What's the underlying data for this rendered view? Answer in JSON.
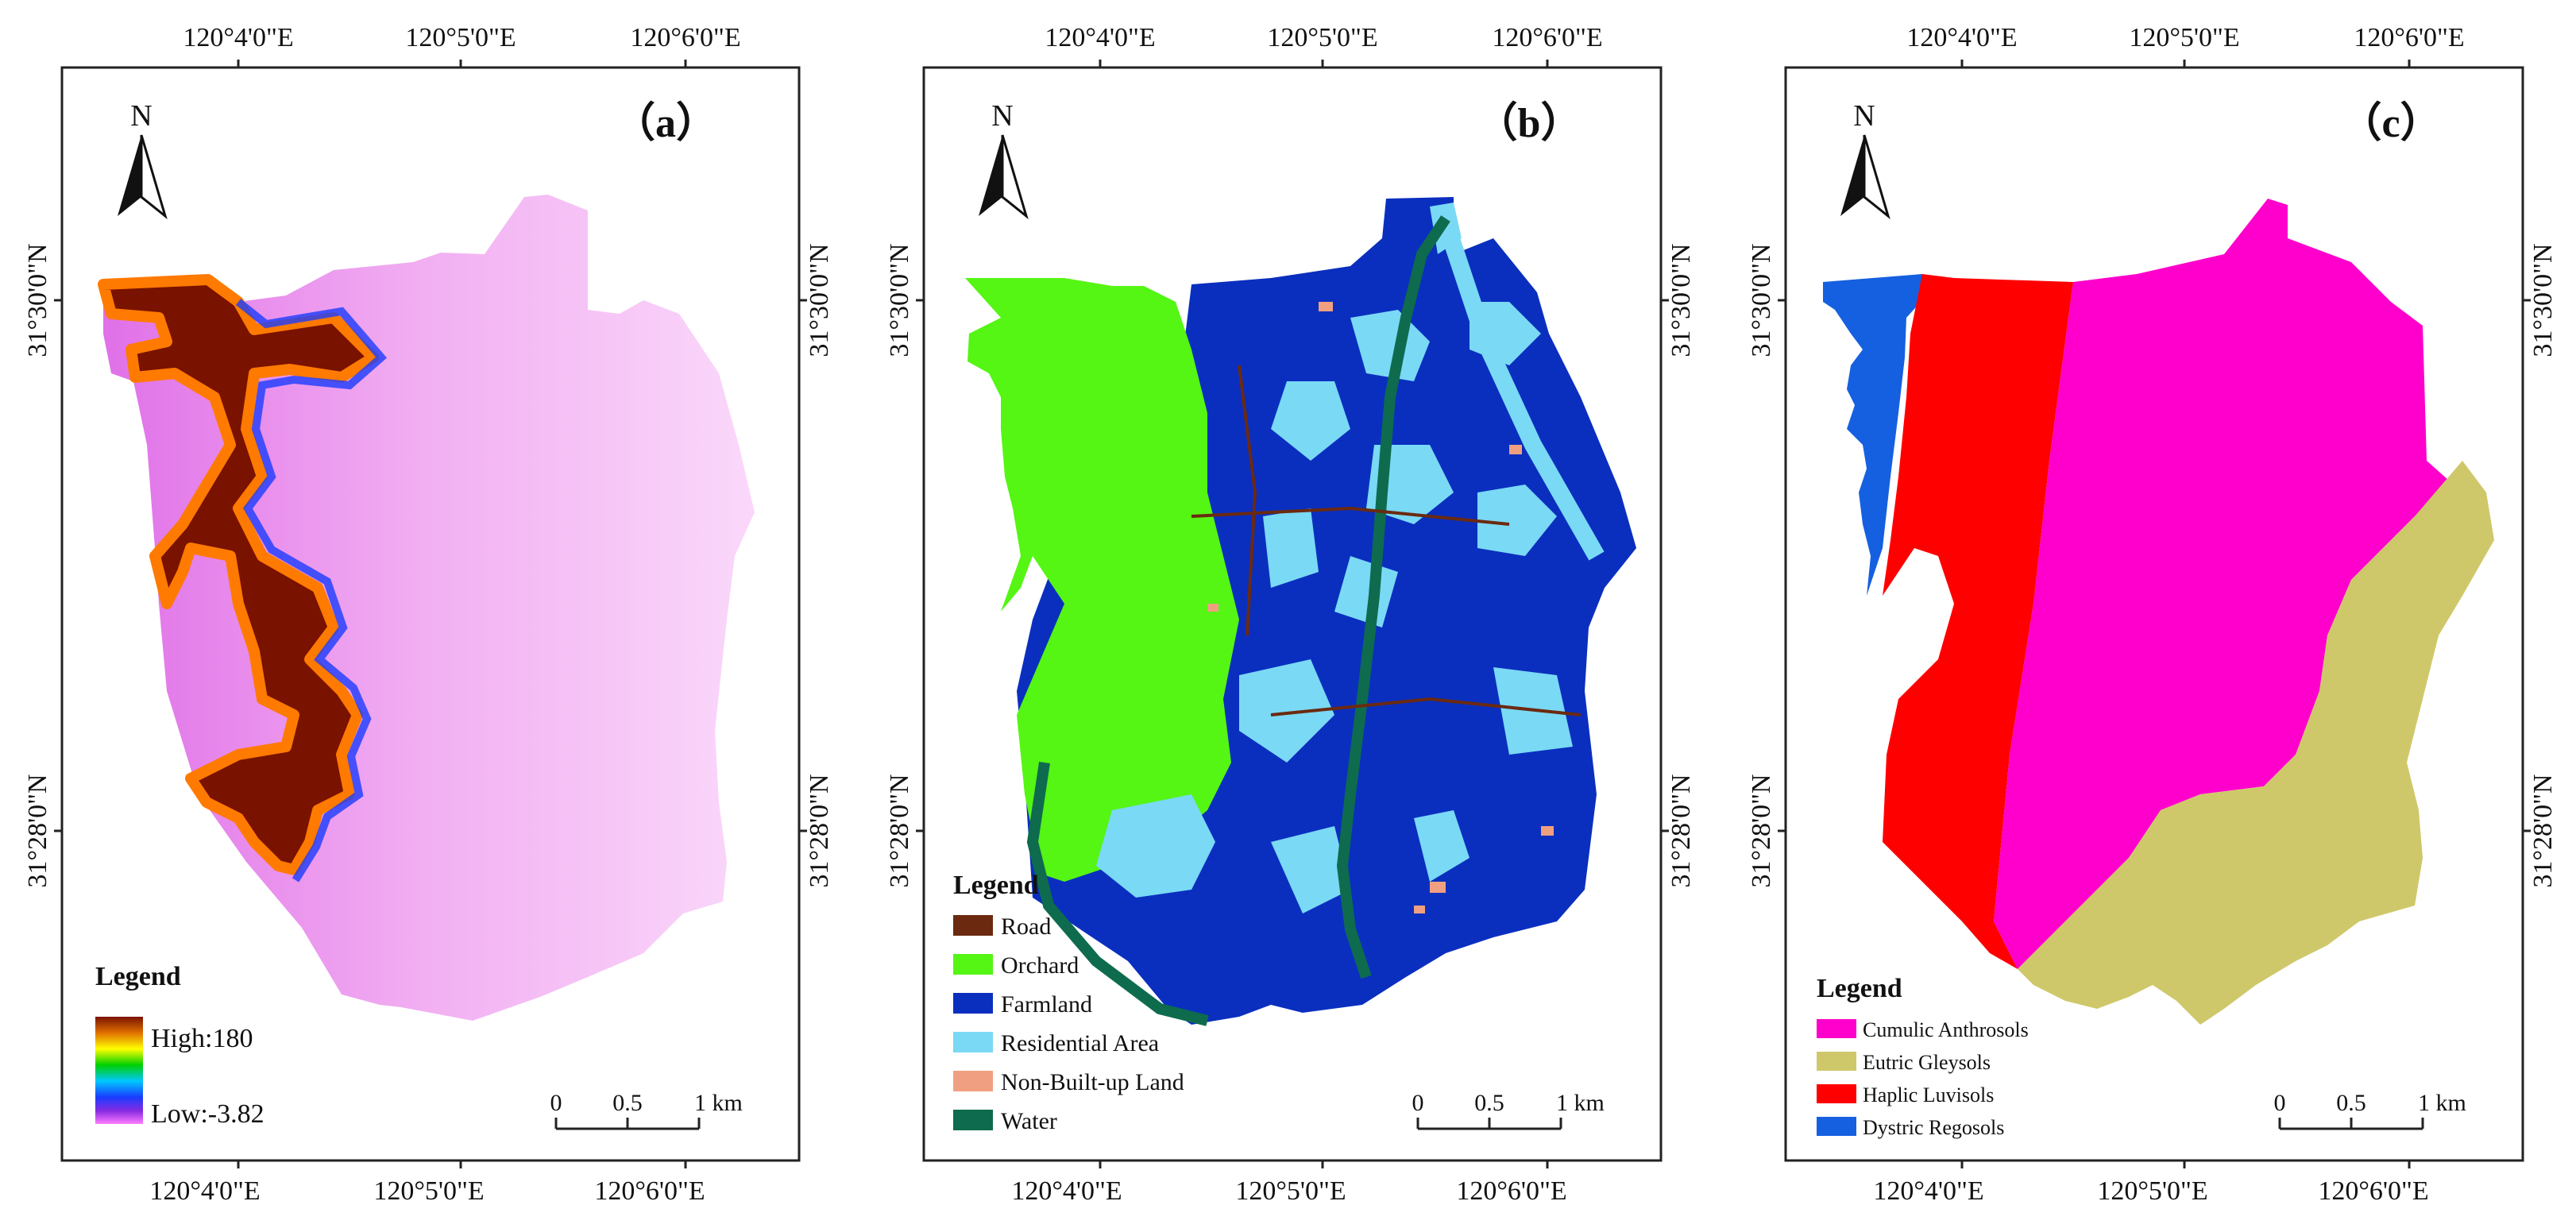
{
  "panels": [
    {
      "id": "a",
      "panel_label": "（a）",
      "north_label": "N",
      "top_lon": [
        "120°4'0\"E",
        "120°5'0\"E",
        "120°6'0\"E"
      ],
      "bottom_lon": [
        "120°4'0\"E",
        "120°5'0\"E",
        "120°6'0\"E"
      ],
      "left_lat": [
        "31°30'0\"N",
        "31°28'0\"N"
      ],
      "right_lat": [
        "31°30'0\"N",
        "31°28'0\"N"
      ],
      "legend": {
        "title": "Legend",
        "type": "gradient",
        "high_label": "High:180",
        "low_label": "Low:-3.82",
        "colors": [
          "#7a1200",
          "#e07000",
          "#ffff00",
          "#00d000",
          "#00c8ff",
          "#1a3cff",
          "#8a2be2",
          "#ff7dff"
        ]
      },
      "scalebar": {
        "ticks": [
          "0",
          "0.5",
          "1 km"
        ]
      }
    },
    {
      "id": "b",
      "panel_label": "（b）",
      "north_label": "N",
      "top_lon": [
        "120°4'0\"E",
        "120°5'0\"E",
        "120°6'0\"E"
      ],
      "bottom_lon": [
        "120°4'0\"E",
        "120°5'0\"E",
        "120°6'0\"E"
      ],
      "left_lat": [
        "31°30'0\"N",
        "31°28'0\"N"
      ],
      "right_lat": [
        "31°30'0\"N",
        "31°28'0\"N"
      ],
      "legend": {
        "title": "Legend",
        "type": "classes",
        "items": [
          {
            "label": "Road",
            "color": "#6b2a10"
          },
          {
            "label": "Orchard",
            "color": "#55f514"
          },
          {
            "label": "Farmland",
            "color": "#0a2fbf"
          },
          {
            "label": "Residential Area",
            "color": "#7ad9f5"
          },
          {
            "label": "Non-Built-up Land",
            "color": "#f0a080"
          },
          {
            "label": "Water",
            "color": "#0e6b4e"
          }
        ]
      },
      "scalebar": {
        "ticks": [
          "0",
          "0.5",
          "1 km"
        ]
      }
    },
    {
      "id": "c",
      "panel_label": "（c）",
      "north_label": "N",
      "top_lon": [
        "120°4'0\"E",
        "120°5'0\"E",
        "120°6'0\"E"
      ],
      "bottom_lon": [
        "120°4'0\"E",
        "120°5'0\"E",
        "120°6'0\"E"
      ],
      "left_lat": [
        "31°30'0\"N",
        "31°28'0\"N"
      ],
      "right_lat": [
        "31°30'0\"N",
        "31°28'0\"N"
      ],
      "legend": {
        "title": "Legend",
        "type": "classes",
        "items": [
          {
            "label": "Cumulic Anthrosols",
            "color": "#ff00cc"
          },
          {
            "label": "Eutric Gleysols",
            "color": "#cfc86a"
          },
          {
            "label": "Haplic Luvisols",
            "color": "#ff0000"
          },
          {
            "label": "Dystric Regosols",
            "color": "#1560e0"
          }
        ]
      },
      "scalebar": {
        "ticks": [
          "0",
          "0.5",
          "1 km"
        ]
      }
    }
  ]
}
